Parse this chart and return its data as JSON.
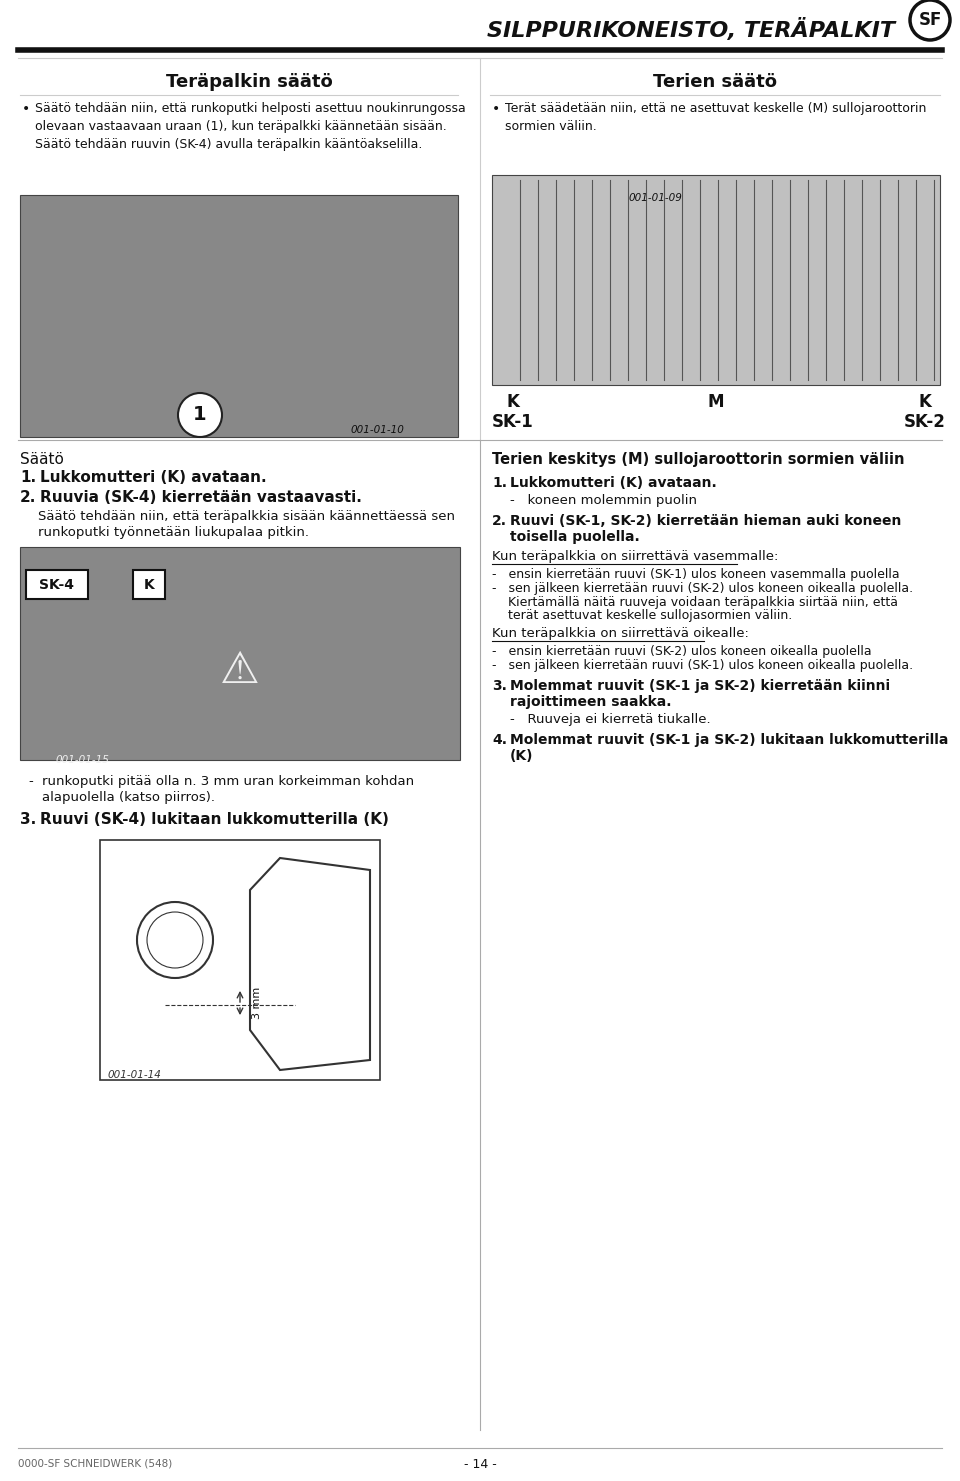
{
  "bg_color": "#ffffff",
  "title": "SILPPURIKONEISTO, TERÄPALKIT",
  "title_sf": "SF",
  "footer_left": "0000-SF SCHNEIDWERK (548)",
  "footer_center": "- 14 -",
  "section1_title": "Teräpalkin säätö",
  "section2_title": "Terien säätö",
  "section1_bullet": "Säätö tehdään niin, että runkoputki helposti asettuu noukinrungossa\nolevaan vastaavaan uraan (1), kun teräpalkki käännetään sisään.\nSäätö tehdään ruuvin (SK-4) avulla teräpalkin kääntöakselilla.",
  "section2_bullet": "Terät säädetään niin, että ne asettuvat keskelle (M) sullojaroottorin\nsormien väliin.",
  "saato_title": "Säätö",
  "saato_point1": "1.  Lukkomutteri (K) avataan.",
  "saato_point2": "2.  Ruuvia (SK-4) kierretään vastaavasti.",
  "saato_text": "Säätö tehdään niin, että teräpalkkia sisään käännettäessä sen\nrunkoputki työnnetään liukupalaa pitkin.",
  "saato_dash": "runkoputki pitää olla n. 3 mm uran korkeimman kohdan\nalapuolella (katso piirros).",
  "saato_point3": "3.  Ruuvi (SK-4) lukitaan lukkomutterilla (K)",
  "right_section_title": "Terien keskitys (M) sullojaroottorin sormien väliin",
  "right_point1_bold": "1.  Lukkomutteri (K) avataan.",
  "right_point1_sub": "-   koneen molemmin puolin",
  "right_point2_bold": "2.  Ruuvi (SK-1, SK-2) kierretään hieman auki koneen toisella puolella.",
  "right_vasemmalle": "Kun teräpalkkia on siirrettävä vasemmalle:",
  "right_v1": "-   ensin kierretään ruuvi (SK-1) ulos koneen vasemmalla puolella",
  "right_v2": "-   sen jälkeen kierretään ruuvi (SK-2) ulos koneen oikealla puolella.\n    Kiertämällä näitä ruuveja voidaan teräpalkkia siirtää niin, että\n    terät asettuvat keskelle sullojasormien väliin.",
  "right_oikealle": "Kun teräpalkkia on siirrettävä oikealle:",
  "right_o1": "-   ensin kierretään ruuvi (SK-2) ulos koneen oikealla puolella",
  "right_o2": "-   sen jälkeen kierretään ruuvi (SK-1) ulos koneen oikealla puolella.",
  "right_point3_bold": "3.  Molemmat ruuvit (SK-1 ja SK-2) kierretään kiinni rajoittimeen saakka.",
  "right_point3_sub": "-   Ruuveja ei kierretä tiukalle.",
  "right_point4_bold": "4.  Molemmat ruuvit (SK-1 ja SK-2) lukitaan lukkomutterilla (K)"
}
